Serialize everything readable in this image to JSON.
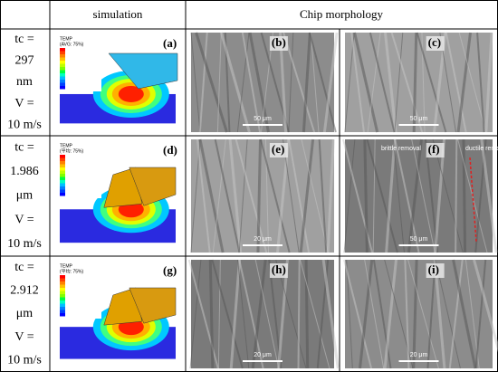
{
  "header": {
    "columns": [
      "simulation",
      "Chip morphology"
    ]
  },
  "rows": [
    {
      "parameters": [
        "tc =",
        "297",
        "nm",
        "V =",
        "10 m/s"
      ],
      "simulation": {
        "label": "(a)",
        "legend_title": "TEMP",
        "legend_subtitle": "(AVG: 75%)"
      },
      "images": [
        {
          "label": "(b)",
          "scale": "50 μm"
        },
        {
          "label": "(c)",
          "scale": "50 μm"
        }
      ]
    },
    {
      "parameters": [
        "tc =",
        "1.986",
        "μm",
        "V =",
        "10 m/s"
      ],
      "simulation": {
        "label": "(d)",
        "legend_title": "TEMP",
        "legend_subtitle": "(平均: 75%)"
      },
      "images": [
        {
          "label": "(e)",
          "scale": "20 μm"
        },
        {
          "label": "(f)",
          "scale": "50 μm",
          "annotations": [
            "brittle removal",
            "ductile removal"
          ]
        }
      ]
    },
    {
      "parameters": [
        "tc =",
        "2.912",
        "μm",
        "V =",
        "10 m/s"
      ],
      "simulation": {
        "label": "(g)",
        "legend_title": "TEMP",
        "legend_subtitle": "(平均: 75%)"
      },
      "images": [
        {
          "label": "(h)",
          "scale": "20 μm"
        },
        {
          "label": "(i)",
          "scale": "20 μm"
        }
      ]
    }
  ]
}
